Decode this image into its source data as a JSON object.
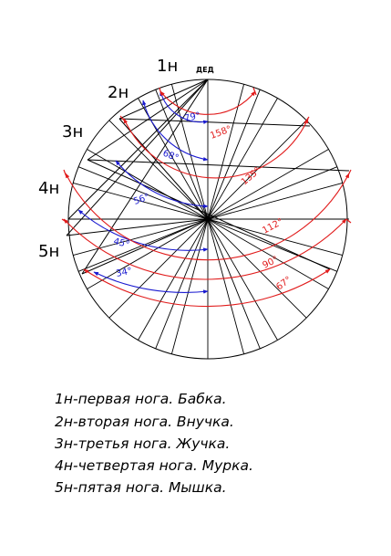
{
  "apex_label": "ДЕД",
  "leg_labels": [
    "1н",
    "2н",
    "3н",
    "4н",
    "5н"
  ],
  "blue_angles": [
    "79°",
    "68°",
    "56°",
    "45°",
    "34°"
  ],
  "red_angles": [
    "158°",
    "135°",
    "112°",
    "90°",
    "67°"
  ],
  "legend": [
    "1н-первая нога. Бабка.",
    "2н-вторая нога. Внучка.",
    "3н-третья нога. Жучка.",
    "4н-четвертая нога. Мурка.",
    "5н-пятая нога. Мышка."
  ],
  "colors": {
    "blue": "#1a1ad0",
    "red": "#e11b1b",
    "line": "#000000"
  }
}
